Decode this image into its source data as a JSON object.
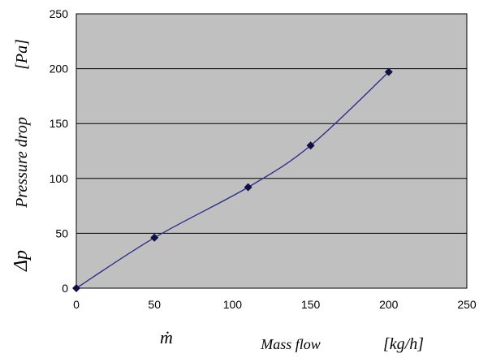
{
  "chart_data": {
    "type": "line",
    "title": "",
    "x": [
      0,
      50,
      110,
      150,
      200
    ],
    "series": [
      {
        "values": [
          0,
          46,
          92,
          130,
          197
        ]
      }
    ],
    "xlim": [
      0,
      250
    ],
    "ylim": [
      0,
      250
    ],
    "xticks": [
      "0",
      "50",
      "100",
      "150",
      "200",
      "250"
    ],
    "yticks": [
      "0",
      "50",
      "100",
      "150",
      "200",
      "250"
    ],
    "xlabel": {
      "symbol": "ṁ",
      "text": "Mass flow",
      "unit": "[kg/h]"
    },
    "ylabel": {
      "symbol": "Δp",
      "text": "Pressure drop",
      "unit": "[Pa]"
    },
    "grid": "horizontal",
    "smooth": true,
    "plot_background": "#c0c0c0",
    "line_color": "#2e2e8a",
    "marker_color": "#101048",
    "marker": "diamond"
  }
}
